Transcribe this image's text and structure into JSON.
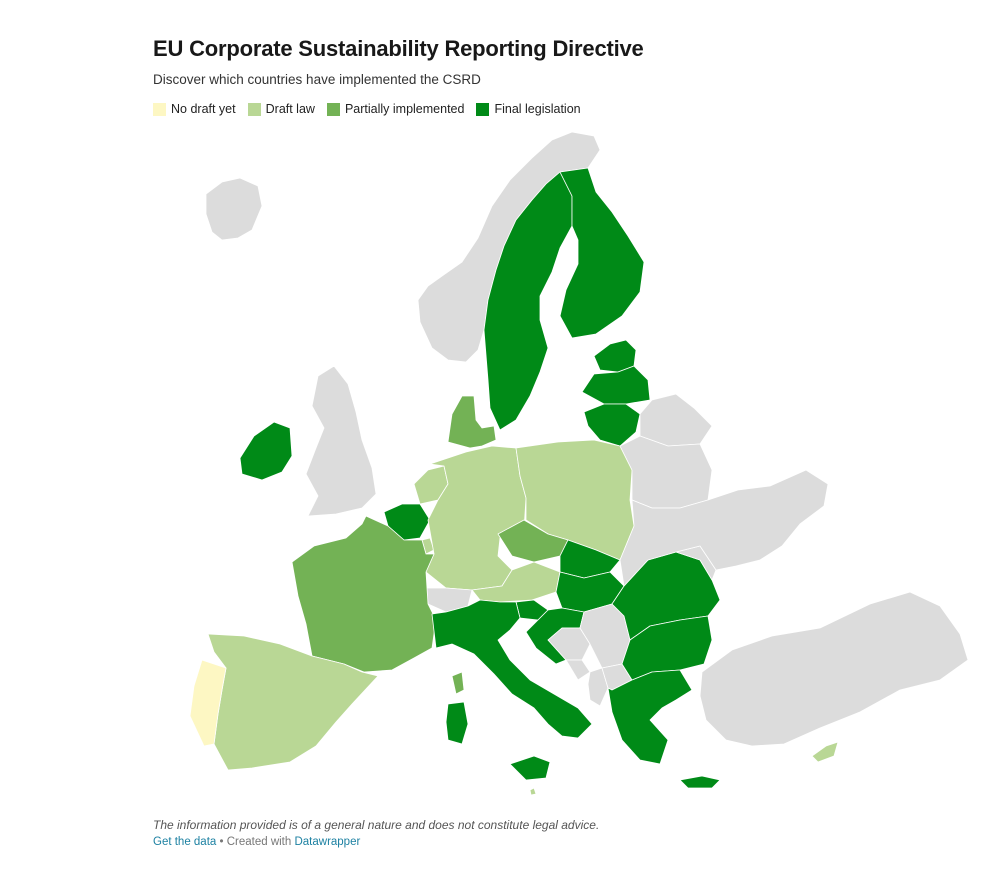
{
  "header": {
    "title": "EU Corporate Sustainability Reporting Directive",
    "subtitle": "Discover which countries have implemented the CSRD"
  },
  "legend": [
    {
      "key": "none",
      "label": "No draft yet",
      "color": "#fdf7c3"
    },
    {
      "key": "draft",
      "label": "Draft law",
      "color": "#b9d795"
    },
    {
      "key": "partial",
      "label": "Partially implemented",
      "color": "#73b255"
    },
    {
      "key": "final",
      "label": "Final legislation",
      "color": "#008a17"
    }
  ],
  "colors": {
    "non_eu": "#dcdcdc",
    "link": "#1d81a2"
  },
  "map_data": {
    "countries": [
      {
        "name": "Portugal",
        "status": "none"
      },
      {
        "name": "Spain",
        "status": "draft"
      },
      {
        "name": "Germany",
        "status": "draft"
      },
      {
        "name": "Poland",
        "status": "draft"
      },
      {
        "name": "Austria",
        "status": "draft"
      },
      {
        "name": "Luxembourg",
        "status": "draft"
      },
      {
        "name": "Netherlands",
        "status": "draft"
      },
      {
        "name": "Cyprus",
        "status": "draft"
      },
      {
        "name": "Malta",
        "status": "draft"
      },
      {
        "name": "France",
        "status": "partial"
      },
      {
        "name": "Denmark",
        "status": "partial"
      },
      {
        "name": "Czechia",
        "status": "partial"
      },
      {
        "name": "Sweden",
        "status": "final"
      },
      {
        "name": "Finland",
        "status": "final"
      },
      {
        "name": "Estonia",
        "status": "final"
      },
      {
        "name": "Latvia",
        "status": "final"
      },
      {
        "name": "Lithuania",
        "status": "final"
      },
      {
        "name": "Ireland",
        "status": "final"
      },
      {
        "name": "Belgium",
        "status": "final"
      },
      {
        "name": "Italy",
        "status": "final"
      },
      {
        "name": "Slovenia",
        "status": "final"
      },
      {
        "name": "Croatia",
        "status": "final"
      },
      {
        "name": "Hungary",
        "status": "final"
      },
      {
        "name": "Slovakia",
        "status": "final"
      },
      {
        "name": "Romania",
        "status": "final"
      },
      {
        "name": "Bulgaria",
        "status": "final"
      },
      {
        "name": "Greece",
        "status": "final"
      },
      {
        "name": "Norway",
        "status": "non_eu"
      },
      {
        "name": "Iceland",
        "status": "non_eu"
      },
      {
        "name": "United Kingdom",
        "status": "non_eu"
      },
      {
        "name": "Switzerland",
        "status": "non_eu"
      },
      {
        "name": "Belarus",
        "status": "non_eu"
      },
      {
        "name": "Ukraine",
        "status": "non_eu"
      },
      {
        "name": "Moldova",
        "status": "non_eu"
      },
      {
        "name": "Turkey",
        "status": "non_eu"
      },
      {
        "name": "Serbia",
        "status": "non_eu"
      },
      {
        "name": "Bosnia and Herzegovina",
        "status": "non_eu"
      },
      {
        "name": "Montenegro",
        "status": "non_eu"
      },
      {
        "name": "Albania",
        "status": "non_eu"
      },
      {
        "name": "North Macedonia",
        "status": "non_eu"
      },
      {
        "name": "Russia",
        "status": "non_eu"
      }
    ]
  },
  "notes": {
    "disclaimer": "The information provided is of a general nature and does not constitute legal advice.",
    "get_data": "Get the data",
    "created_with": " • Created with ",
    "datawrapper": "Datawrapper"
  }
}
